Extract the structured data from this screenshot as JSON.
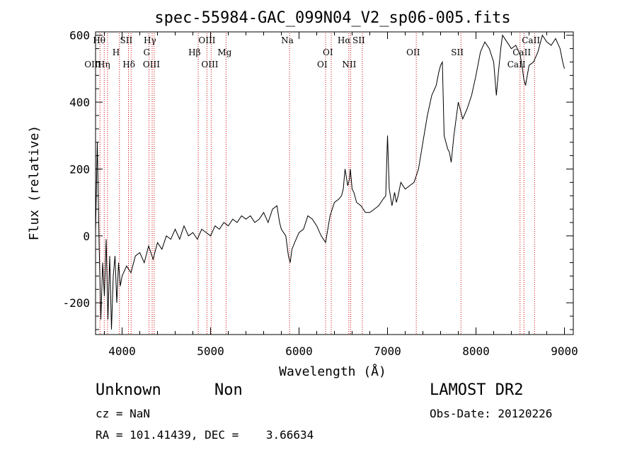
{
  "chart_data": {
    "type": "line",
    "title": "spec-55984-GAC_099N04_V2_sp06-005.fits",
    "xlabel": "Wavelength (Å)",
    "ylabel": "Flux (relative)",
    "xlim": [
      3700,
      9100
    ],
    "ylim": [
      -295,
      610
    ],
    "xticks": [
      4000,
      5000,
      6000,
      7000,
      8000,
      9000
    ],
    "yticks": [
      -200,
      0,
      200,
      400,
      600
    ],
    "grid": false,
    "line_color": "#000000",
    "marker_color": "#cc0000",
    "series": [
      {
        "x": [
          3700,
          3720,
          3740,
          3760,
          3780,
          3800,
          3820,
          3840,
          3860,
          3880,
          3900,
          3920,
          3940,
          3960,
          3980,
          4000,
          4050,
          4100,
          4150,
          4200,
          4250,
          4300,
          4350,
          4400,
          4450,
          4500,
          4550,
          4600,
          4650,
          4700,
          4750,
          4800,
          4850,
          4900,
          4950,
          5000,
          5050,
          5100,
          5150,
          5200,
          5250,
          5300,
          5350,
          5400,
          5450,
          5500,
          5550,
          5600,
          5650,
          5700,
          5750,
          5780,
          5800,
          5850,
          5880,
          5900,
          5920,
          5950,
          6000,
          6050,
          6100,
          6150,
          6200,
          6250,
          6300,
          6350,
          6400,
          6450,
          6480,
          6500,
          6520,
          6550,
          6570,
          6580,
          6600,
          6620,
          6650,
          6700,
          6750,
          6800,
          6850,
          6900,
          6950,
          6980,
          7000,
          7020,
          7050,
          7080,
          7100,
          7120,
          7150,
          7200,
          7250,
          7300,
          7350,
          7400,
          7450,
          7500,
          7550,
          7580,
          7600,
          7620,
          7640,
          7660,
          7680,
          7700,
          7720,
          7750,
          7800,
          7850,
          7900,
          7950,
          8000,
          8050,
          8100,
          8150,
          8200,
          8230,
          8250,
          8280,
          8300,
          8350,
          8400,
          8450,
          8500,
          8520,
          8540,
          8560,
          8600,
          8650,
          8700,
          8750,
          8800,
          8850,
          8900,
          8950,
          8980,
          9000
        ],
        "y": [
          10,
          280,
          -20,
          -250,
          -80,
          -180,
          -10,
          -250,
          -60,
          -280,
          -120,
          -60,
          -200,
          -80,
          -150,
          -120,
          -90,
          -110,
          -60,
          -50,
          -80,
          -30,
          -70,
          -20,
          -40,
          0,
          -10,
          20,
          -10,
          30,
          0,
          10,
          -10,
          20,
          10,
          0,
          30,
          20,
          40,
          30,
          50,
          40,
          60,
          50,
          60,
          40,
          50,
          70,
          40,
          80,
          90,
          40,
          20,
          0,
          -60,
          -80,
          -40,
          -20,
          10,
          20,
          60,
          50,
          30,
          0,
          -20,
          60,
          100,
          110,
          120,
          140,
          200,
          150,
          170,
          200,
          140,
          130,
          100,
          90,
          70,
          70,
          80,
          90,
          110,
          120,
          300,
          140,
          90,
          130,
          100,
          120,
          160,
          140,
          150,
          160,
          200,
          280,
          360,
          420,
          450,
          490,
          510,
          520,
          300,
          280,
          260,
          250,
          220,
          300,
          400,
          350,
          380,
          420,
          480,
          550,
          580,
          560,
          520,
          420,
          480,
          560,
          600,
          580,
          560,
          570,
          540,
          510,
          470,
          450,
          510,
          520,
          550,
          600,
          580,
          570,
          590,
          560,
          520,
          500
        ]
      }
    ],
    "lines": [
      {
        "w": 3750,
        "label": "OIII",
        "row": 3,
        "dx": -22
      },
      {
        "w": 3798,
        "label": "Hθ",
        "row": 1,
        "dx": -16
      },
      {
        "w": 3835,
        "label": "Hη",
        "row": 3,
        "dx": -14
      },
      {
        "w": 3970,
        "label": "H",
        "row": 2,
        "dx": -10
      },
      {
        "w": 4072,
        "label": "SII",
        "row": 1,
        "dx": -12
      },
      {
        "w": 4102,
        "label": "Hδ",
        "row": 3,
        "dx": -12
      },
      {
        "w": 4304,
        "label": "G",
        "row": 2,
        "dx": -8
      },
      {
        "w": 4340,
        "label": "Hγ",
        "row": 1,
        "dx": -12
      },
      {
        "w": 4363,
        "label": "OIII",
        "row": 3,
        "dx": -16
      },
      {
        "w": 4861,
        "label": "Hβ",
        "row": 2,
        "dx": -14
      },
      {
        "w": 4959,
        "label": "OIII",
        "row": 1,
        "dx": -12
      },
      {
        "w": 5007,
        "label": "OIII",
        "row": 3,
        "dx": -14
      },
      {
        "w": 5175,
        "label": "Mg",
        "row": 2,
        "dx": -12
      },
      {
        "w": 5893,
        "label": "Na",
        "row": 1,
        "dx": -12
      },
      {
        "w": 6300,
        "label": "OI",
        "row": 3,
        "dx": -12
      },
      {
        "w": 6364,
        "label": "OI",
        "row": 2,
        "dx": -12
      },
      {
        "w": 6563,
        "label": "Hα",
        "row": 1,
        "dx": -16
      },
      {
        "w": 6583,
        "label": "NII",
        "row": 3,
        "dx": -12
      },
      {
        "w": 6716,
        "label": "SII",
        "row": 1,
        "dx": -14
      },
      {
        "w": 7325,
        "label": "OII",
        "row": 2,
        "dx": -14
      },
      {
        "w": 7830,
        "label": "SII",
        "row": 2,
        "dx": -14
      },
      {
        "w": 8498,
        "label": "CaII",
        "row": 3,
        "dx": -18
      },
      {
        "w": 8542,
        "label": "CaII",
        "row": 2,
        "dx": -16
      },
      {
        "w": 8662,
        "label": "CaII",
        "row": 1,
        "dx": -18
      }
    ]
  },
  "info": {
    "class_text": "Unknown",
    "subclass_text": "Non",
    "survey": "LAMOST DR2",
    "cz": "cz = NaN",
    "obs_date": "Obs-Date: 20120226",
    "radec": "RA = 101.41439, DEC =    3.66634"
  }
}
